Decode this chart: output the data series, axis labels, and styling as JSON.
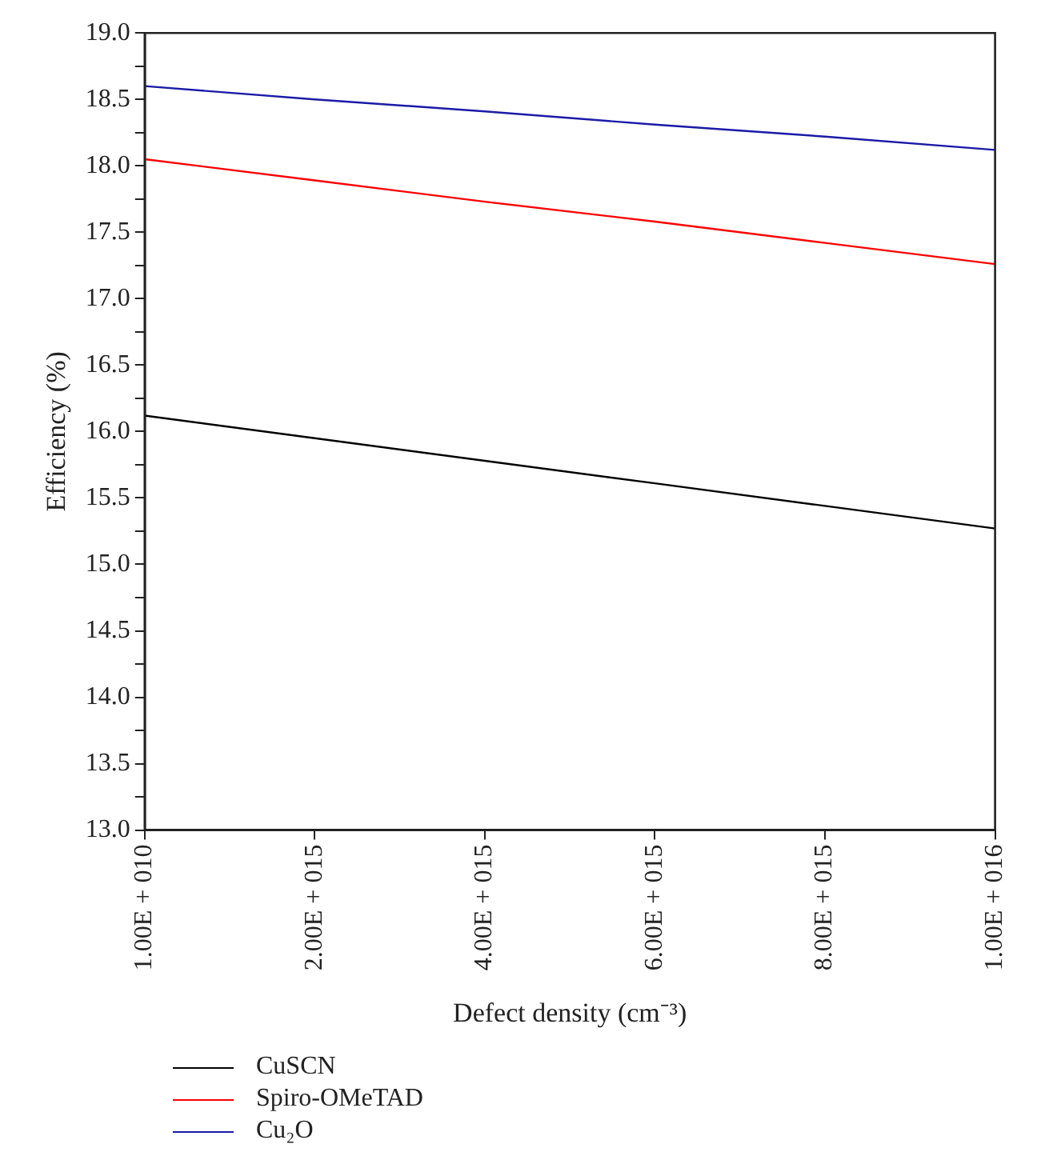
{
  "chart_data": {
    "type": "line",
    "xlabel": "Defect density (cm⁻³)",
    "ylabel": "Efficiency (%)",
    "categories": [
      "1.00E + 010",
      "2.00E + 015",
      "4.00E + 015",
      "6.00E + 015",
      "8.00E + 015",
      "1.00E + 016"
    ],
    "ylim": [
      13,
      19
    ],
    "yticks": [
      {
        "value": 13,
        "label": "13.0"
      },
      {
        "value": 13.25,
        "label": null
      },
      {
        "value": 13.5,
        "label": "13.5"
      },
      {
        "value": 13.75,
        "label": null
      },
      {
        "value": 14,
        "label": "14.0"
      },
      {
        "value": 14.25,
        "label": null
      },
      {
        "value": 14.5,
        "label": "14.5"
      },
      {
        "value": 14.75,
        "label": null
      },
      {
        "value": 15,
        "label": "15.0"
      },
      {
        "value": 15.25,
        "label": null
      },
      {
        "value": 15.5,
        "label": "15.5"
      },
      {
        "value": 15.75,
        "label": null
      },
      {
        "value": 16,
        "label": "16.0"
      },
      {
        "value": 16.25,
        "label": null
      },
      {
        "value": 16.5,
        "label": "16.5"
      },
      {
        "value": 16.75,
        "label": null
      },
      {
        "value": 17,
        "label": "17.0"
      },
      {
        "value": 17.25,
        "label": null
      },
      {
        "value": 17.5,
        "label": "17.5"
      },
      {
        "value": 17.75,
        "label": null
      },
      {
        "value": 18,
        "label": "18.0"
      },
      {
        "value": 18.25,
        "label": null
      },
      {
        "value": 18.5,
        "label": "18.5"
      },
      {
        "value": 18.75,
        "label": null
      },
      {
        "value": 19,
        "label": "19.0"
      }
    ],
    "series": [
      {
        "name": "CuSCN",
        "color": "#000000",
        "values": [
          16.12,
          15.95,
          15.78,
          15.61,
          15.44,
          15.27
        ]
      },
      {
        "name": "Spiro-OMeTAD",
        "color": "#ff0000",
        "values": [
          18.05,
          17.89,
          17.73,
          17.58,
          17.42,
          17.26
        ]
      },
      {
        "name": "Cu₂O",
        "color": "#1a1aa8",
        "values": [
          18.6,
          18.5,
          18.41,
          18.31,
          18.22,
          18.12
        ]
      }
    ],
    "legend": "bottom",
    "grid": false,
    "marker": "none",
    "line_style": "solid"
  }
}
